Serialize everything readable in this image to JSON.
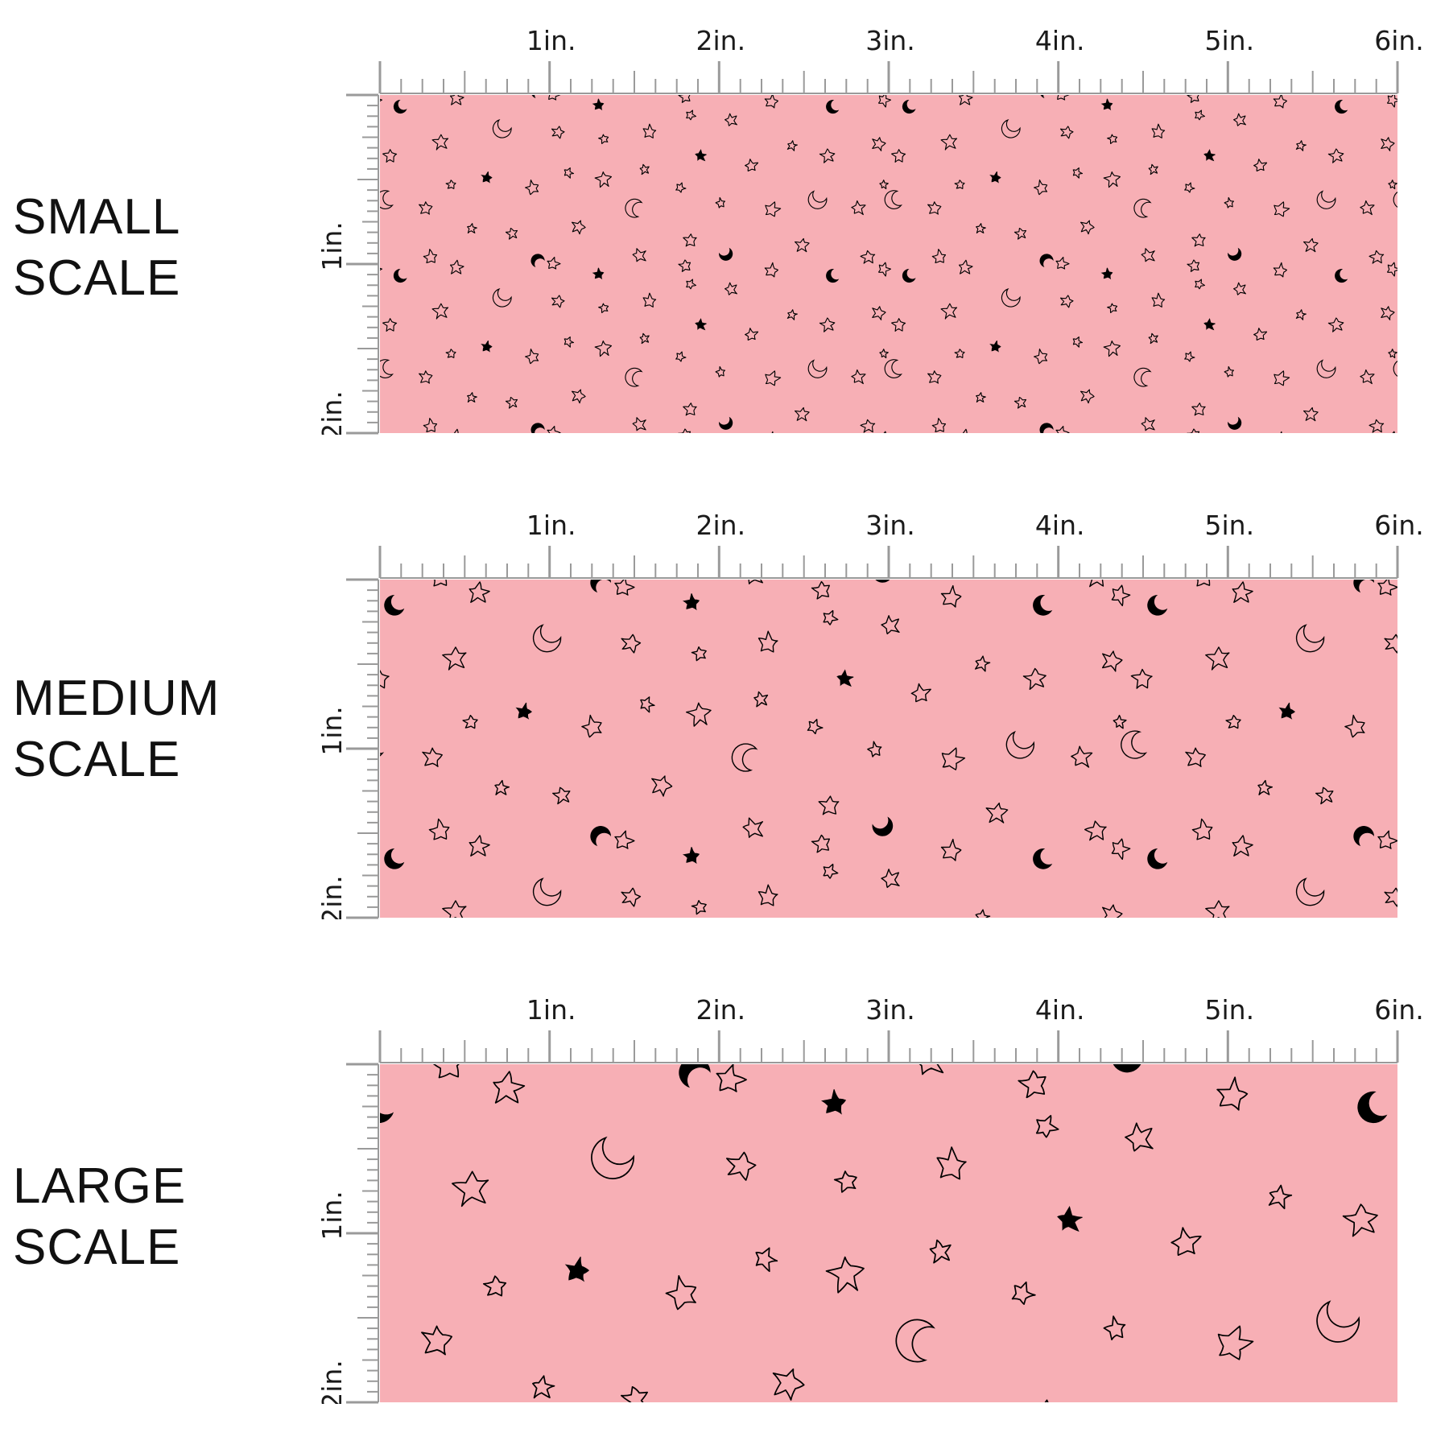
{
  "colors": {
    "swatch": "#F7AFB5",
    "ink": "#000000",
    "ruler": "#9a9a9a"
  },
  "ruler": {
    "top_labels": [
      "1in.",
      "2in.",
      "3in.",
      "4in.",
      "5in.",
      "6in."
    ],
    "side_labels": [
      "1in.",
      "2in."
    ]
  },
  "panels": [
    {
      "id": "small",
      "label_line1": "SMALL",
      "label_line2": "SCALE"
    },
    {
      "id": "medium",
      "label_line1": "MEDIUM",
      "label_line2": "SCALE"
    },
    {
      "id": "large",
      "label_line1": "LARGE",
      "label_line2": "SCALE"
    }
  ],
  "pattern_motifs": [
    "outline-star-icon",
    "solid-star-icon",
    "outline-moon-icon",
    "solid-moon-icon"
  ]
}
